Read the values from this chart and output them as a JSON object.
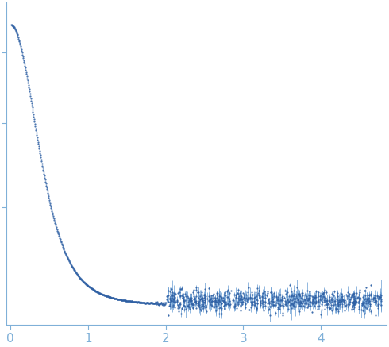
{
  "title": "",
  "xlabel": "",
  "ylabel": "",
  "xlim": [
    -0.05,
    4.85
  ],
  "x_ticks": [
    0,
    1,
    2,
    3,
    4
  ],
  "point_color": "#2e5fa3",
  "errorbar_color": "#6b9fd4",
  "point_size": 3.5,
  "background_color": "#ffffff",
  "spine_color": "#7fb0d8",
  "tick_color": "#7fb0d8",
  "tick_label_color": "#7fb0d8",
  "tick_label_size": 11,
  "figsize": [
    4.9,
    4.37
  ],
  "dpi": 100,
  "seed": 42
}
